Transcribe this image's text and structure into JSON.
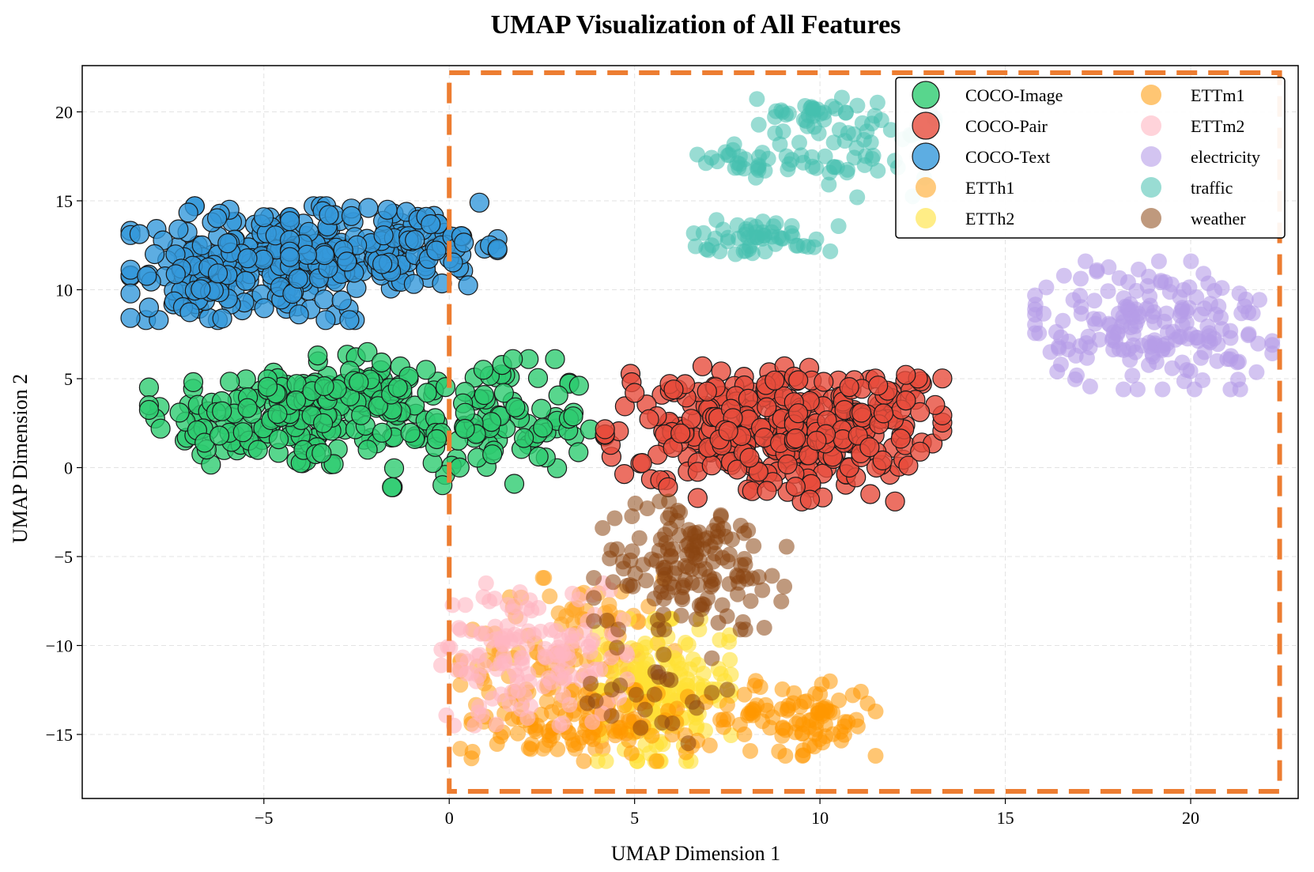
{
  "chart_data": {
    "type": "scatter",
    "title": "UMAP Visualization of All Features",
    "xlabel": "UMAP Dimension 1",
    "ylabel": "UMAP Dimension 2",
    "xlim": [
      -9.9,
      22.9
    ],
    "ylim": [
      -18.6,
      22.6
    ],
    "xticks": [
      -5,
      0,
      5,
      10,
      15,
      20
    ],
    "yticks": [
      -15,
      -10,
      -5,
      0,
      5,
      10,
      15,
      20
    ],
    "grid": true,
    "legend_position": "top-right",
    "highlight_box": {
      "x_range": [
        0,
        22.4
      ],
      "y_range": [
        -18.2,
        22.2
      ],
      "color": "#ed7d31",
      "style": "dashed"
    },
    "series": [
      {
        "name": "COCO-Image",
        "color": "#2ecc71",
        "edge": true,
        "alpha": 0.8,
        "clusters": [
          {
            "cx": -4.5,
            "cy": 2.8,
            "sx": 1.8,
            "sy": 1.5,
            "n": 150
          },
          {
            "cx": 0.8,
            "cy": 2.5,
            "sx": 1.5,
            "sy": 1.8,
            "n": 120
          },
          {
            "cx": -2.5,
            "cy": 4.5,
            "sx": 1.2,
            "sy": 1.0,
            "n": 60
          }
        ],
        "points": [
          [
            -6.8,
            2.1
          ],
          [
            -6.6,
            1.4
          ],
          [
            -6.2,
            1.8
          ]
        ]
      },
      {
        "name": "COCO-Pair",
        "color": "#e74c3c",
        "edge": true,
        "alpha": 0.8,
        "clusters": [
          {
            "cx": 7.0,
            "cy": 2.5,
            "sx": 1.4,
            "sy": 1.6,
            "n": 110
          },
          {
            "cx": 9.5,
            "cy": 1.5,
            "sx": 1.4,
            "sy": 1.7,
            "n": 160
          },
          {
            "cx": 11.3,
            "cy": 2.8,
            "sx": 1.0,
            "sy": 1.4,
            "n": 80
          }
        ],
        "points": [
          [
            5.9,
            -1.1
          ],
          [
            5.0,
            4.2
          ],
          [
            12.7,
            0.9
          ]
        ]
      },
      {
        "name": "COCO-Text",
        "color": "#3498db",
        "edge": true,
        "alpha": 0.8,
        "clusters": [
          {
            "cx": -5.0,
            "cy": 11.5,
            "sx": 1.8,
            "sy": 1.6,
            "n": 200
          },
          {
            "cx": -1.5,
            "cy": 12.5,
            "sx": 1.4,
            "sy": 1.2,
            "n": 130
          },
          {
            "cx": -7.0,
            "cy": 10.0,
            "sx": 0.8,
            "sy": 1.0,
            "n": 40
          }
        ],
        "points": [
          [
            -2.9,
            9.4
          ],
          [
            -8.1,
            9.0
          ]
        ]
      },
      {
        "name": "ETTh1",
        "color": "#ffa726",
        "edge": false,
        "alpha": 0.6,
        "clusters": [
          {
            "cx": 3.5,
            "cy": -11.0,
            "sx": 1.6,
            "sy": 2.4,
            "n": 160
          }
        ],
        "points": []
      },
      {
        "name": "ETTh2",
        "color": "#ffe135",
        "edge": false,
        "alpha": 0.6,
        "clusters": [
          {
            "cx": 5.8,
            "cy": -12.5,
            "sx": 0.9,
            "sy": 2.0,
            "n": 170
          }
        ],
        "points": []
      },
      {
        "name": "ETTm1",
        "color": "#ff9800",
        "edge": false,
        "alpha": 0.55,
        "clusters": [
          {
            "cx": 9.5,
            "cy": -14.0,
            "sx": 1.0,
            "sy": 1.1,
            "n": 90
          },
          {
            "cx": 4.0,
            "cy": -14.5,
            "sx": 1.7,
            "sy": 1.0,
            "n": 90
          }
        ],
        "points": []
      },
      {
        "name": "ETTm2",
        "color": "#ffb6c1",
        "edge": false,
        "alpha": 0.6,
        "clusters": [
          {
            "cx": 2.2,
            "cy": -10.5,
            "sx": 1.3,
            "sy": 2.0,
            "n": 140
          }
        ],
        "points": []
      },
      {
        "name": "electricity",
        "color": "#b59ce8",
        "edge": false,
        "alpha": 0.6,
        "clusters": [
          {
            "cx": 19.0,
            "cy": 8.0,
            "sx": 1.6,
            "sy": 1.8,
            "n": 190
          }
        ],
        "points": [
          [
            16.5,
            5.8
          ],
          [
            16.4,
            5.4
          ]
        ]
      },
      {
        "name": "traffic",
        "color": "#45bfae",
        "edge": false,
        "alpha": 0.55,
        "clusters": [
          {
            "cx": 9.5,
            "cy": 19.8,
            "sx": 0.6,
            "sy": 0.5,
            "n": 30
          },
          {
            "cx": 11.5,
            "cy": 18.0,
            "sx": 0.8,
            "sy": 1.4,
            "n": 45
          },
          {
            "cx": 8.2,
            "cy": 17.3,
            "sx": 0.8,
            "sy": 0.5,
            "n": 35
          },
          {
            "cx": 8.5,
            "cy": 13.0,
            "sx": 1.0,
            "sy": 0.5,
            "n": 55
          }
        ],
        "points": []
      },
      {
        "name": "weather",
        "color": "#8b4513",
        "edge": false,
        "alpha": 0.55,
        "clusters": [
          {
            "cx": 6.5,
            "cy": -5.5,
            "sx": 1.3,
            "sy": 1.8,
            "n": 150
          },
          {
            "cx": 5.5,
            "cy": -12.5,
            "sx": 1.0,
            "sy": 1.5,
            "n": 25
          }
        ],
        "points": []
      }
    ]
  }
}
